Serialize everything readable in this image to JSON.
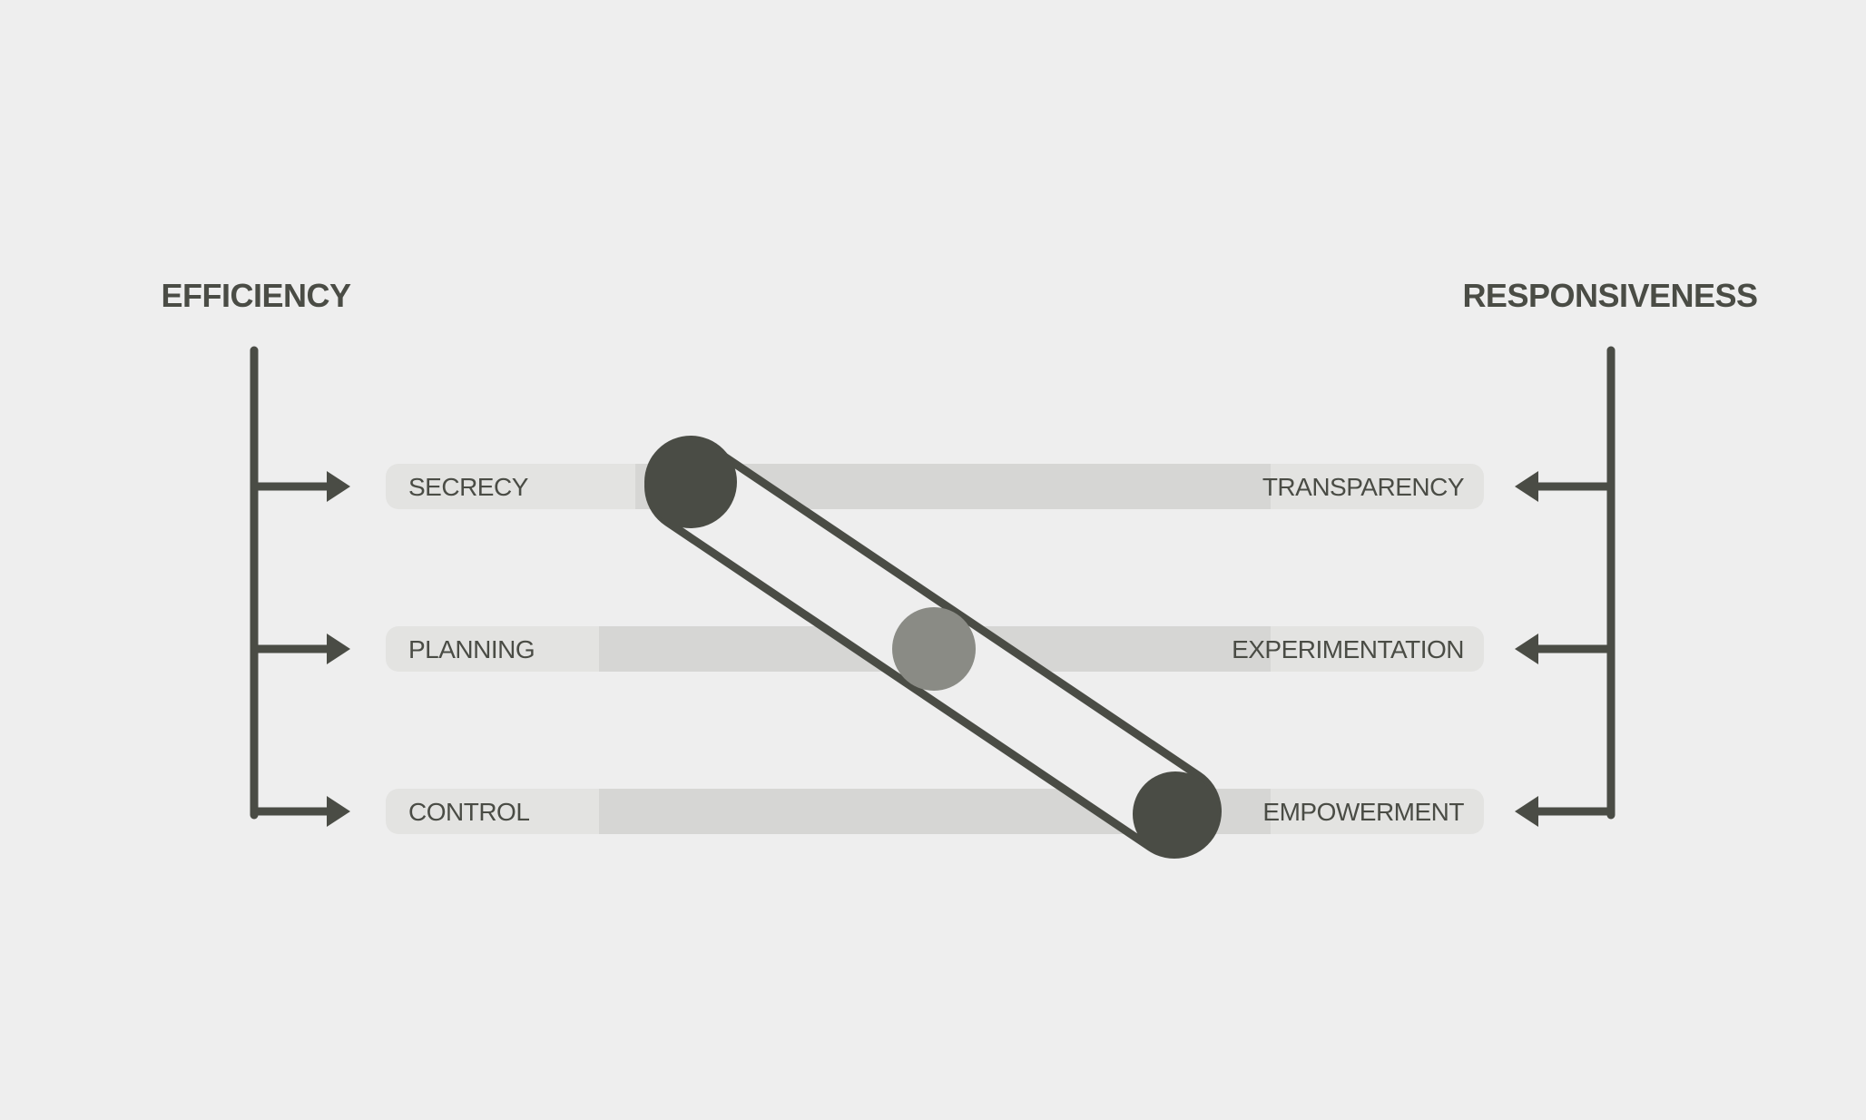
{
  "left_heading": "EFFICIENCY",
  "right_heading": "RESPONSIVENESS",
  "spectra": [
    {
      "left_label": "SECRECY",
      "right_label": "TRANSPARENCY",
      "marker_position": 0.0
    },
    {
      "left_label": "PLANNING",
      "right_label": "EXPERIMENTATION",
      "marker_position": 0.5
    },
    {
      "left_label": "CONTROL",
      "right_label": "EMPOWERMENT",
      "marker_position": 1.0
    }
  ],
  "colors": {
    "background": "#eeeeee",
    "ink": "#4a4c45",
    "track": "#d6d6d4",
    "track_light": "#e3e3e1",
    "marker_mid": "#8a8b85"
  }
}
